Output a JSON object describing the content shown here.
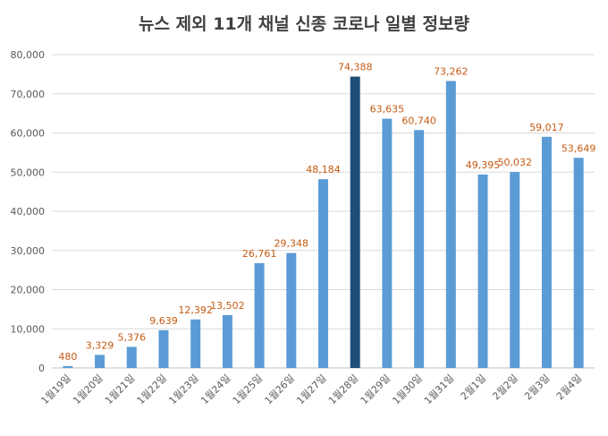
{
  "chart_data": {
    "type": "bar",
    "title": "뉴스 제외 11개 채널 신종 코로나 일별 정보량",
    "xlabel": "",
    "ylabel": "",
    "categories": [
      "1월19일",
      "1월20일",
      "1월21일",
      "1월22일",
      "1월23일",
      "1월24일",
      "1월25일",
      "1월26일",
      "1월27일",
      "1월28일",
      "1월29일",
      "1월30일",
      "1월31일",
      "2월1일",
      "2월2일",
      "2월3일",
      "2월4일"
    ],
    "values": [
      480,
      3329,
      5376,
      9639,
      12392,
      13502,
      26761,
      29348,
      48184,
      74388,
      63635,
      60740,
      73262,
      49395,
      50032,
      59017,
      53649
    ],
    "value_labels": [
      "480",
      "3,329",
      "5,376",
      "9,639",
      "12,392",
      "13,502",
      "26,761",
      "29,348",
      "48,184",
      "74,388",
      "63,635",
      "60,740",
      "73,262",
      "49,395",
      "50,032",
      "59,017",
      "53,649"
    ],
    "ylim": [
      0,
      80000
    ],
    "yticks": [
      0,
      10000,
      20000,
      30000,
      40000,
      50000,
      60000,
      70000,
      80000
    ],
    "ytick_labels": [
      "0",
      "10,000",
      "20,000",
      "30,000",
      "40,000",
      "50,000",
      "60,000",
      "70,000",
      "80,000"
    ],
    "grid": true,
    "legend": "none",
    "highlight_index": 9,
    "colors": {
      "bar": "#5b9bd5",
      "highlight": "#1f4e79",
      "data_label": "#c55a11",
      "grid": "#d9d9d9",
      "tick_text": "#595959",
      "title": "#404040"
    }
  }
}
